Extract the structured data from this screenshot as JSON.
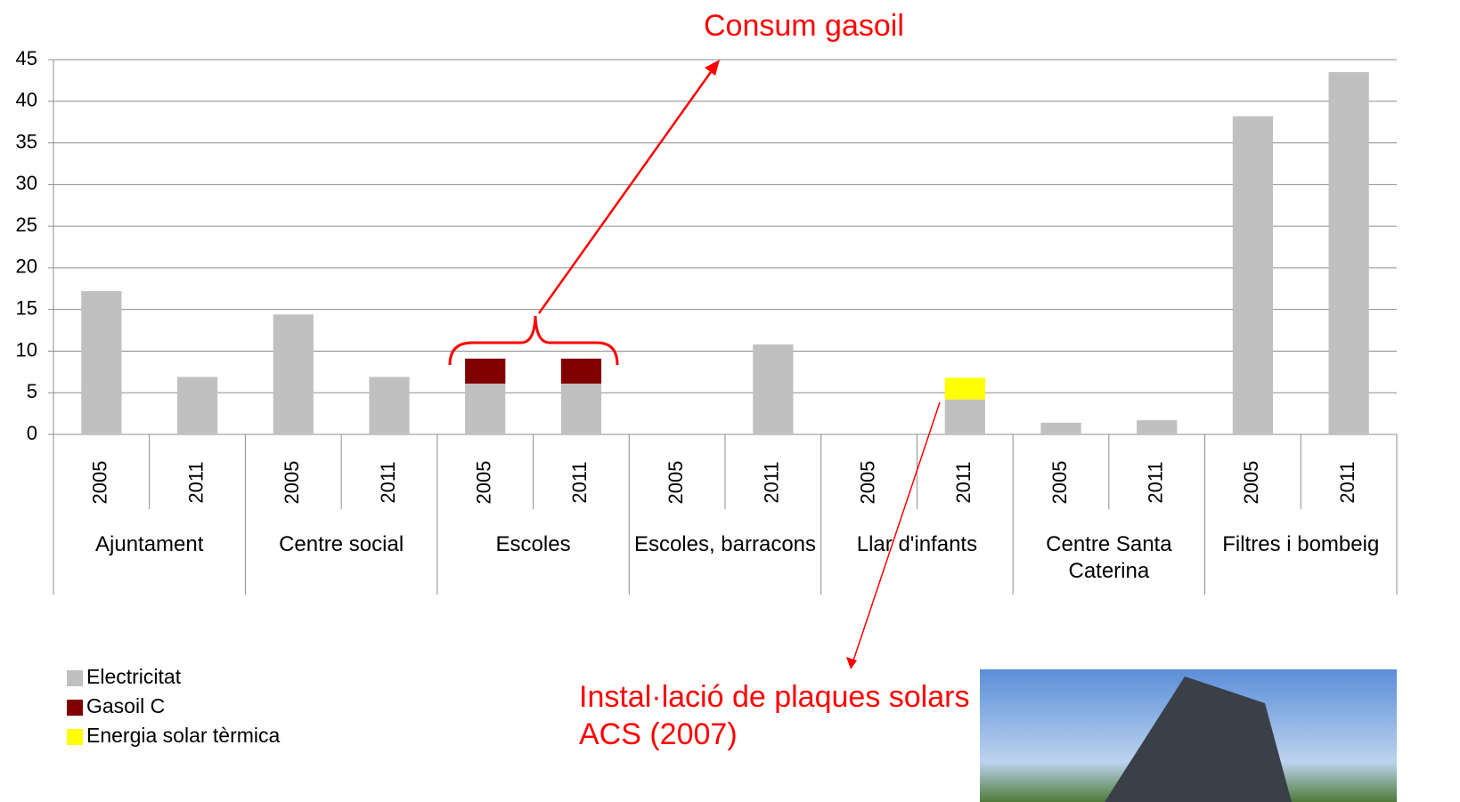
{
  "chart_data": {
    "type": "stacked-bar",
    "categories": [
      "2005",
      "2011",
      "2005",
      "2011",
      "2005",
      "2011",
      "2005",
      "2011",
      "2005",
      "2011",
      "2005",
      "2011",
      "2005",
      "2011"
    ],
    "groups": [
      "Ajuntament",
      "Centre social",
      "Escoles",
      "Escoles, barracons",
      "Llar d'infants",
      "Centre Santa Caterina",
      "Filtres i bombeig"
    ],
    "series": [
      {
        "name": "Electricitat",
        "color": "#c0c0c0",
        "values": [
          17.2,
          6.9,
          14.4,
          6.9,
          6.1,
          6.1,
          0,
          10.8,
          0,
          4.2,
          1.4,
          1.7,
          38.2,
          43.5
        ]
      },
      {
        "name": "Gasoil C",
        "color": "#800000",
        "values": [
          0,
          0,
          0,
          0,
          3.0,
          3.0,
          0,
          0,
          0,
          0,
          0,
          0,
          0,
          0
        ]
      },
      {
        "name": "Energia solar tèrmica",
        "color": "#ffff00",
        "values": [
          0,
          0,
          0,
          0,
          0,
          0,
          0,
          0,
          0,
          2.6,
          0,
          0,
          0,
          0
        ]
      }
    ],
    "ylim": [
      0,
      45
    ],
    "yticks": [
      0,
      5,
      10,
      15,
      20,
      25,
      30,
      35,
      40,
      45
    ],
    "grid": true,
    "annotations": [
      "Consum gasoil",
      "Instal·lació de plaques solars ACS (2007)"
    ]
  }
}
